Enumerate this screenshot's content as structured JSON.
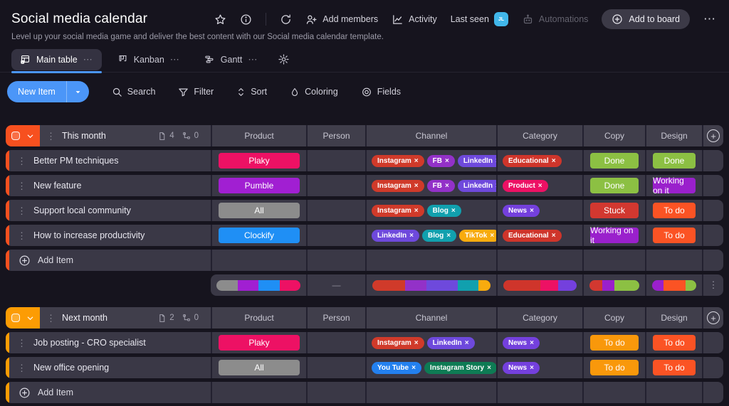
{
  "header": {
    "title": "Social media calendar",
    "subtitle": "Level up your social media game and deliver the best content with our Social media calendar template.",
    "add_members": "Add members",
    "activity": "Activity",
    "last_seen": "Last seen",
    "avatar_initials": "JL",
    "automations": "Automations",
    "add_to_board": "Add to board"
  },
  "tabs": {
    "main_table": "Main table",
    "kanban": "Kanban",
    "gantt": "Gantt"
  },
  "toolbar": {
    "new_item": "New Item",
    "search": "Search",
    "filter": "Filter",
    "sort": "Sort",
    "coloring": "Coloring",
    "fields": "Fields"
  },
  "columns": {
    "product": "Product",
    "person": "Person",
    "channel": "Channel",
    "category": "Category",
    "copy": "Copy",
    "design": "Design"
  },
  "icons": {
    "remove": "×",
    "drag": "⋮",
    "more": "⋯",
    "menu": "⋮"
  },
  "colors": {
    "accent_blue": "#4b96f8",
    "group1": "#f7501f",
    "group2": "#fc9c04"
  },
  "groups": [
    {
      "title": "This month",
      "color": "#f7501f",
      "doc_count": "4",
      "subitem_count": "0",
      "add_item": "Add Item",
      "rows": [
        {
          "name": "Better PM techniques",
          "product": {
            "label": "Plaky",
            "color": "#ed1164"
          },
          "channels": [
            {
              "label": "Instagram",
              "color": "#d03a2a"
            },
            {
              "label": "FB",
              "color": "#9331c8"
            },
            {
              "label": "LinkedIn",
              "color": "#6e49dc"
            }
          ],
          "categories": [
            {
              "label": "Educational",
              "color": "#cf352b"
            }
          ],
          "copy": {
            "label": "Done",
            "color": "#8cc043"
          },
          "design": {
            "label": "Done",
            "color": "#8cc043"
          }
        },
        {
          "name": "New feature",
          "product": {
            "label": "Pumble",
            "color": "#a11fd2"
          },
          "channels": [
            {
              "label": "Instagram",
              "color": "#d03a2a"
            },
            {
              "label": "FB",
              "color": "#9331c8"
            },
            {
              "label": "LinkedIn",
              "color": "#6e49dc"
            }
          ],
          "categories": [
            {
              "label": "Product",
              "color": "#ed1164"
            }
          ],
          "copy": {
            "label": "Done",
            "color": "#8cc043"
          },
          "design": {
            "label": "Working on it",
            "color": "#9a20cc"
          }
        },
        {
          "name": "Support local community",
          "product": {
            "label": "All",
            "color": "#8c8c8c"
          },
          "channels": [
            {
              "label": "Instagram",
              "color": "#d03a2a"
            },
            {
              "label": "Blog",
              "color": "#11a0ae"
            }
          ],
          "categories": [
            {
              "label": "News",
              "color": "#7440dd"
            }
          ],
          "copy": {
            "label": "Stuck",
            "color": "#d23830"
          },
          "design": {
            "label": "To do",
            "color": "#fb5324"
          }
        },
        {
          "name": "How to increase productivity",
          "product": {
            "label": "Clockify",
            "color": "#1f8ff5"
          },
          "channels": [
            {
              "label": "LinkedIn",
              "color": "#6e49dc"
            },
            {
              "label": "Blog",
              "color": "#11a0ae"
            },
            {
              "label": "TikTok",
              "color": "#f8ab0e"
            }
          ],
          "categories": [
            {
              "label": "Educational",
              "color": "#cf352b"
            }
          ],
          "copy": {
            "label": "Working on it",
            "color": "#9a20cc"
          },
          "design": {
            "label": "To do",
            "color": "#fb5324"
          }
        }
      ],
      "summary": {
        "person": "—",
        "product": [
          {
            "color": "#8c8c8c",
            "pct": 25
          },
          {
            "color": "#a11fd2",
            "pct": 25
          },
          {
            "color": "#1f8ff5",
            "pct": 25
          },
          {
            "color": "#ed1164",
            "pct": 25
          }
        ],
        "channel": [
          {
            "color": "#d03a2a",
            "pct": 28
          },
          {
            "color": "#9331c8",
            "pct": 18
          },
          {
            "color": "#6e49dc",
            "pct": 26
          },
          {
            "color": "#11a0ae",
            "pct": 18
          },
          {
            "color": "#f8ab0e",
            "pct": 10
          }
        ],
        "category": [
          {
            "color": "#cf352b",
            "pct": 50
          },
          {
            "color": "#ed1164",
            "pct": 25
          },
          {
            "color": "#7440dd",
            "pct": 25
          }
        ],
        "copy": [
          {
            "color": "#d23830",
            "pct": 25
          },
          {
            "color": "#9a20cc",
            "pct": 25
          },
          {
            "color": "#8cc043",
            "pct": 50
          }
        ],
        "design": [
          {
            "color": "#9a20cc",
            "pct": 25
          },
          {
            "color": "#fb5324",
            "pct": 50
          },
          {
            "color": "#8cc043",
            "pct": 25
          }
        ]
      }
    },
    {
      "title": "Next month",
      "color": "#fc9c04",
      "doc_count": "2",
      "subitem_count": "0",
      "add_item": "Add Item",
      "rows": [
        {
          "name": "Job posting - CRO specialist",
          "product": {
            "label": "Plaky",
            "color": "#ed1164"
          },
          "channels": [
            {
              "label": "Instagram",
              "color": "#d03a2a"
            },
            {
              "label": "LinkedIn",
              "color": "#6e49dc"
            }
          ],
          "categories": [
            {
              "label": "News",
              "color": "#7440dd"
            }
          ],
          "copy": {
            "label": "To do",
            "color": "#f9980b"
          },
          "design": {
            "label": "To do",
            "color": "#fb5324"
          }
        },
        {
          "name": "New office opening",
          "product": {
            "label": "All",
            "color": "#8c8c8c"
          },
          "channels": [
            {
              "label": "You Tube",
              "color": "#2380ef"
            },
            {
              "label": "Instagram Story",
              "color": "#0e7b54"
            }
          ],
          "categories": [
            {
              "label": "News",
              "color": "#7440dd"
            }
          ],
          "copy": {
            "label": "To do",
            "color": "#f9980b"
          },
          "design": {
            "label": "To do",
            "color": "#fb5324"
          }
        }
      ]
    }
  ]
}
